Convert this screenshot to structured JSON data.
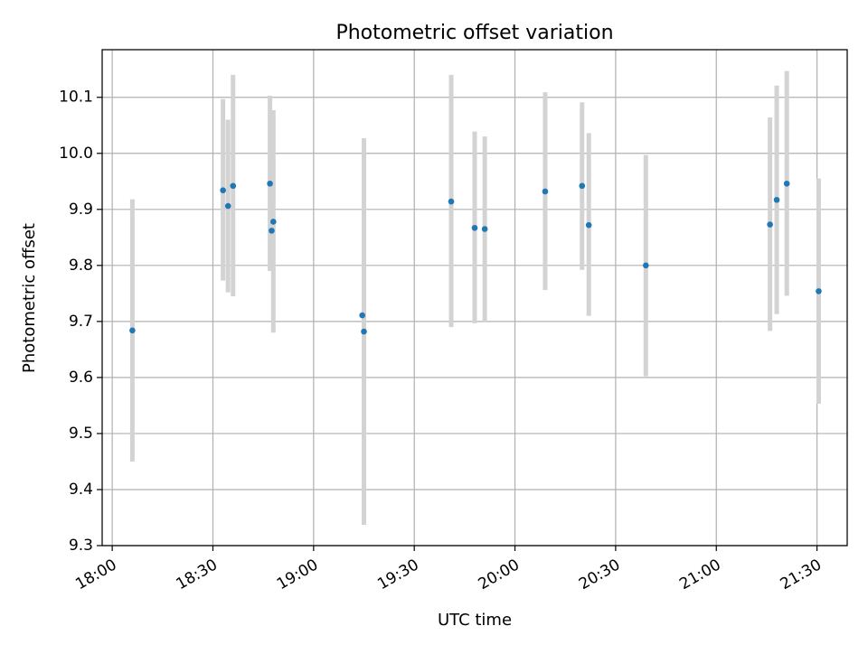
{
  "chart_data": {
    "type": "scatter",
    "title": "Photometric offset variation",
    "xlabel": "UTC time",
    "ylabel": "Photometric offset",
    "xlim": [
      "17:57",
      "21:39"
    ],
    "ylim": [
      9.3,
      10.185
    ],
    "x_ticks": [
      "18:00",
      "18:30",
      "19:00",
      "19:30",
      "20:00",
      "20:30",
      "21:00",
      "21:30"
    ],
    "y_ticks": [
      9.3,
      9.4,
      9.5,
      9.6,
      9.7,
      9.8,
      9.9,
      10.0,
      10.1
    ],
    "grid": true,
    "colors": {
      "point": "#1f77b4",
      "errorbar": "#d3d3d3",
      "grid": "#b0b0b0"
    },
    "points": [
      {
        "t": "18:06",
        "y": 9.684,
        "err_low": 9.45,
        "err_high": 9.918
      },
      {
        "t": "18:33",
        "y": 9.934,
        "err_low": 9.773,
        "err_high": 10.097
      },
      {
        "t": "18:34.5",
        "y": 9.906,
        "err_low": 9.752,
        "err_high": 10.06
      },
      {
        "t": "18:36",
        "y": 9.942,
        "err_low": 9.745,
        "err_high": 10.14
      },
      {
        "t": "18:47",
        "y": 9.946,
        "err_low": 9.79,
        "err_high": 10.103
      },
      {
        "t": "18:47.5",
        "y": 9.862,
        "err_low": null,
        "err_high": null
      },
      {
        "t": "18:48",
        "y": 9.878,
        "err_low": 9.68,
        "err_high": 10.077
      },
      {
        "t": "19:14.5",
        "y": 9.711,
        "err_low": null,
        "err_high": null
      },
      {
        "t": "19:15",
        "y": 9.682,
        "err_low": 9.337,
        "err_high": 10.027
      },
      {
        "t": "19:41",
        "y": 9.914,
        "err_low": 9.69,
        "err_high": 10.14
      },
      {
        "t": "19:48",
        "y": 9.867,
        "err_low": 9.697,
        "err_high": 10.039
      },
      {
        "t": "19:51",
        "y": 9.865,
        "err_low": 9.7,
        "err_high": 10.03
      },
      {
        "t": "20:09",
        "y": 9.932,
        "err_low": 9.756,
        "err_high": 10.109
      },
      {
        "t": "20:20",
        "y": 9.942,
        "err_low": 9.792,
        "err_high": 10.091
      },
      {
        "t": "20:22",
        "y": 9.872,
        "err_low": 9.71,
        "err_high": 10.036
      },
      {
        "t": "20:39",
        "y": 9.8,
        "err_low": 9.602,
        "err_high": 9.997
      },
      {
        "t": "21:16",
        "y": 9.873,
        "err_low": 9.683,
        "err_high": 10.064
      },
      {
        "t": "21:18",
        "y": 9.917,
        "err_low": 9.713,
        "err_high": 10.121
      },
      {
        "t": "21:21",
        "y": 9.946,
        "err_low": 9.746,
        "err_high": 10.147
      },
      {
        "t": "21:30.5",
        "y": 9.754,
        "err_low": 9.553,
        "err_high": 9.955
      }
    ]
  }
}
